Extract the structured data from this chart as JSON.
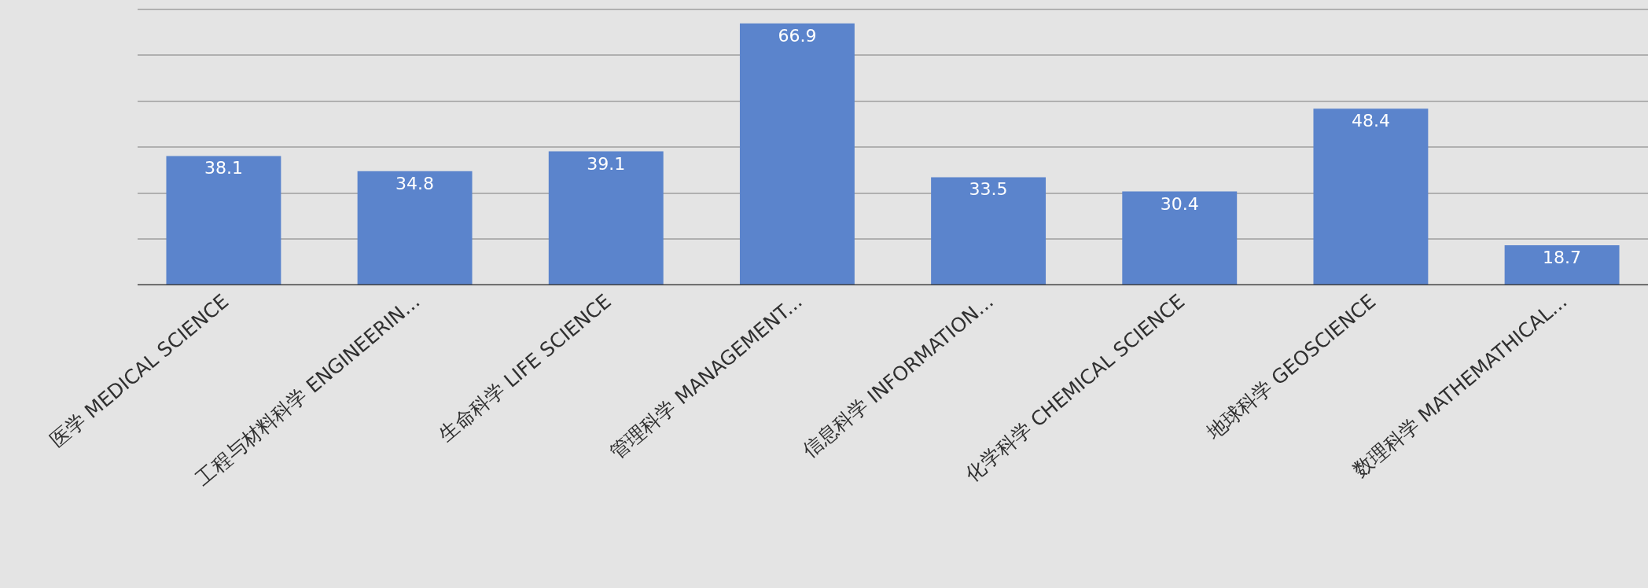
{
  "chart_data": {
    "type": "bar",
    "categories": [
      "医学 MEDICAL SCIENCE",
      "工程与材料科学 ENGINEERIN...",
      "生命科学 LIFE SCIENCE",
      "管理科学 MANAGEMENT...",
      "信息科学 INFORMATION...",
      "化学科学 CHEMICAL SCIENCE",
      "地球科学 GEOSCIENCE",
      "数理科学 MATHEMATHICAL..."
    ],
    "values": [
      38.1,
      34.8,
      39.1,
      66.9,
      33.5,
      30.4,
      48.4,
      18.7
    ],
    "color": "#5b84cc",
    "ylim": [
      10,
      72
    ],
    "yticks": [
      {
        "value": 10,
        "label": null
      },
      {
        "value": 20,
        "label": null
      },
      {
        "value": 30,
        "label": null
      },
      {
        "value": 40,
        "label": null
      },
      {
        "value": 50,
        "label": null
      },
      {
        "value": 60,
        "label": null
      },
      {
        "value": 70,
        "label": null
      }
    ],
    "grid": "y",
    "data_labels": true,
    "tick_labels": "x"
  }
}
